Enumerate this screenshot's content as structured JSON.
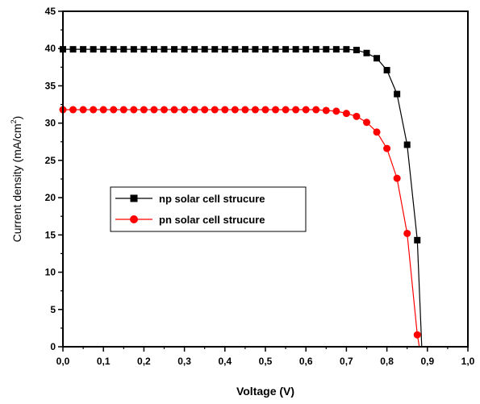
{
  "chart_data": {
    "type": "line",
    "xlabel": "Voltage (V)",
    "ylabel": "Current density (mA/cm",
    "ylabel_sup": "2",
    "ylabel_close": ")",
    "xlim": [
      0.0,
      1.0
    ],
    "ylim": [
      0,
      45
    ],
    "x_ticks": [
      0.0,
      0.1,
      0.2,
      0.3,
      0.4,
      0.5,
      0.6,
      0.7,
      0.8,
      0.9,
      1.0
    ],
    "x_tick_labels": [
      "0,0",
      "0,1",
      "0,2",
      "0,3",
      "0,4",
      "0,5",
      "0,6",
      "0,7",
      "0,8",
      "0,9",
      "1,0"
    ],
    "y_ticks": [
      0,
      5,
      10,
      15,
      20,
      25,
      30,
      35,
      40,
      45
    ],
    "y_tick_labels": [
      "0",
      "5",
      "10",
      "15",
      "20",
      "25",
      "30",
      "35",
      "40",
      "45"
    ],
    "grid": false,
    "legend_placement": "center-left",
    "series": [
      {
        "name": "np solar cell strucure",
        "color": "#000000",
        "marker": "square",
        "x": [
          0.0,
          0.025,
          0.05,
          0.075,
          0.1,
          0.125,
          0.15,
          0.175,
          0.2,
          0.225,
          0.25,
          0.275,
          0.3,
          0.325,
          0.35,
          0.375,
          0.4,
          0.425,
          0.45,
          0.475,
          0.5,
          0.525,
          0.55,
          0.575,
          0.6,
          0.625,
          0.65,
          0.675,
          0.7,
          0.725,
          0.75,
          0.775,
          0.8,
          0.825,
          0.85,
          0.875,
          0.886
        ],
        "y": [
          39.9,
          39.9,
          39.9,
          39.9,
          39.9,
          39.9,
          39.9,
          39.9,
          39.9,
          39.9,
          39.9,
          39.9,
          39.9,
          39.9,
          39.9,
          39.9,
          39.9,
          39.9,
          39.9,
          39.9,
          39.9,
          39.9,
          39.9,
          39.9,
          39.9,
          39.9,
          39.9,
          39.9,
          39.9,
          39.8,
          39.4,
          38.7,
          37.1,
          33.9,
          27.1,
          14.3,
          0.0
        ],
        "marker_count": 36
      },
      {
        "name": "pn solar cell strucure",
        "color": "#ff0000",
        "marker": "circle",
        "x": [
          0.0,
          0.025,
          0.05,
          0.075,
          0.1,
          0.125,
          0.15,
          0.175,
          0.2,
          0.225,
          0.25,
          0.275,
          0.3,
          0.325,
          0.35,
          0.375,
          0.4,
          0.425,
          0.45,
          0.475,
          0.5,
          0.525,
          0.55,
          0.575,
          0.6,
          0.625,
          0.65,
          0.675,
          0.7,
          0.725,
          0.75,
          0.775,
          0.8,
          0.825,
          0.85,
          0.875,
          0.88
        ],
        "y": [
          31.8,
          31.8,
          31.8,
          31.8,
          31.8,
          31.8,
          31.8,
          31.8,
          31.8,
          31.8,
          31.8,
          31.8,
          31.8,
          31.8,
          31.8,
          31.8,
          31.8,
          31.8,
          31.8,
          31.8,
          31.8,
          31.8,
          31.8,
          31.8,
          31.8,
          31.8,
          31.7,
          31.6,
          31.3,
          30.9,
          30.1,
          28.8,
          26.6,
          22.6,
          15.2,
          1.6,
          0.0
        ],
        "marker_count": 36
      }
    ]
  }
}
